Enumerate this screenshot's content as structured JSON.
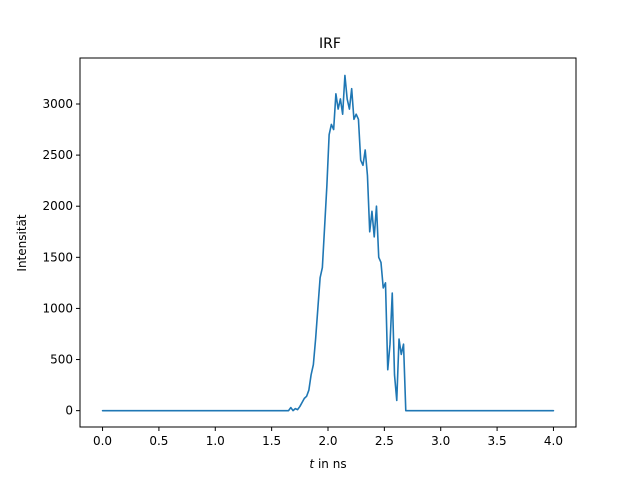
{
  "chart_data": {
    "type": "line",
    "title": "IRF",
    "xlabel_italic": "t",
    "xlabel_rest": " in ns",
    "ylabel": "Intensität",
    "xlim": [
      -0.2,
      4.2
    ],
    "ylim": [
      -160,
      3450
    ],
    "xticks": [
      0.0,
      0.5,
      1.0,
      1.5,
      2.0,
      2.5,
      3.0,
      3.5,
      4.0
    ],
    "xtick_labels": [
      "0.0",
      "0.5",
      "1.0",
      "1.5",
      "2.0",
      "2.5",
      "3.0",
      "3.5",
      "4.0"
    ],
    "yticks": [
      0,
      500,
      1000,
      1500,
      2000,
      2500,
      3000
    ],
    "ytick_labels": [
      "0",
      "500",
      "1000",
      "1500",
      "2000",
      "2500",
      "3000"
    ],
    "grid": false,
    "series": [
      {
        "color": "#1f77b4",
        "x": [
          0.0,
          1.5,
          1.65,
          1.67,
          1.69,
          1.71,
          1.73,
          1.75,
          1.77,
          1.79,
          1.81,
          1.83,
          1.85,
          1.87,
          1.89,
          1.91,
          1.93,
          1.95,
          1.97,
          1.99,
          2.01,
          2.03,
          2.05,
          2.07,
          2.09,
          2.11,
          2.13,
          2.15,
          2.17,
          2.19,
          2.21,
          2.23,
          2.25,
          2.27,
          2.29,
          2.31,
          2.33,
          2.35,
          2.37,
          2.39,
          2.41,
          2.43,
          2.45,
          2.47,
          2.49,
          2.51,
          2.53,
          2.55,
          2.57,
          2.59,
          2.61,
          2.63,
          2.65,
          2.67,
          2.69,
          2.71,
          2.73,
          2.75,
          2.77,
          3.0,
          3.5,
          4.0
        ],
        "y": [
          0,
          0,
          0,
          30,
          0,
          20,
          10,
          40,
          80,
          120,
          140,
          200,
          350,
          450,
          700,
          1000,
          1300,
          1400,
          1800,
          2200,
          2700,
          2800,
          2750,
          3100,
          2950,
          3050,
          2900,
          3280,
          3050,
          2950,
          3150,
          2850,
          2900,
          2850,
          2450,
          2400,
          2550,
          2300,
          1750,
          1950,
          1700,
          2000,
          1500,
          1450,
          1200,
          1250,
          400,
          650,
          1150,
          350,
          100,
          700,
          550,
          650,
          0,
          0,
          0,
          0,
          0,
          0,
          0,
          0
        ]
      }
    ]
  }
}
